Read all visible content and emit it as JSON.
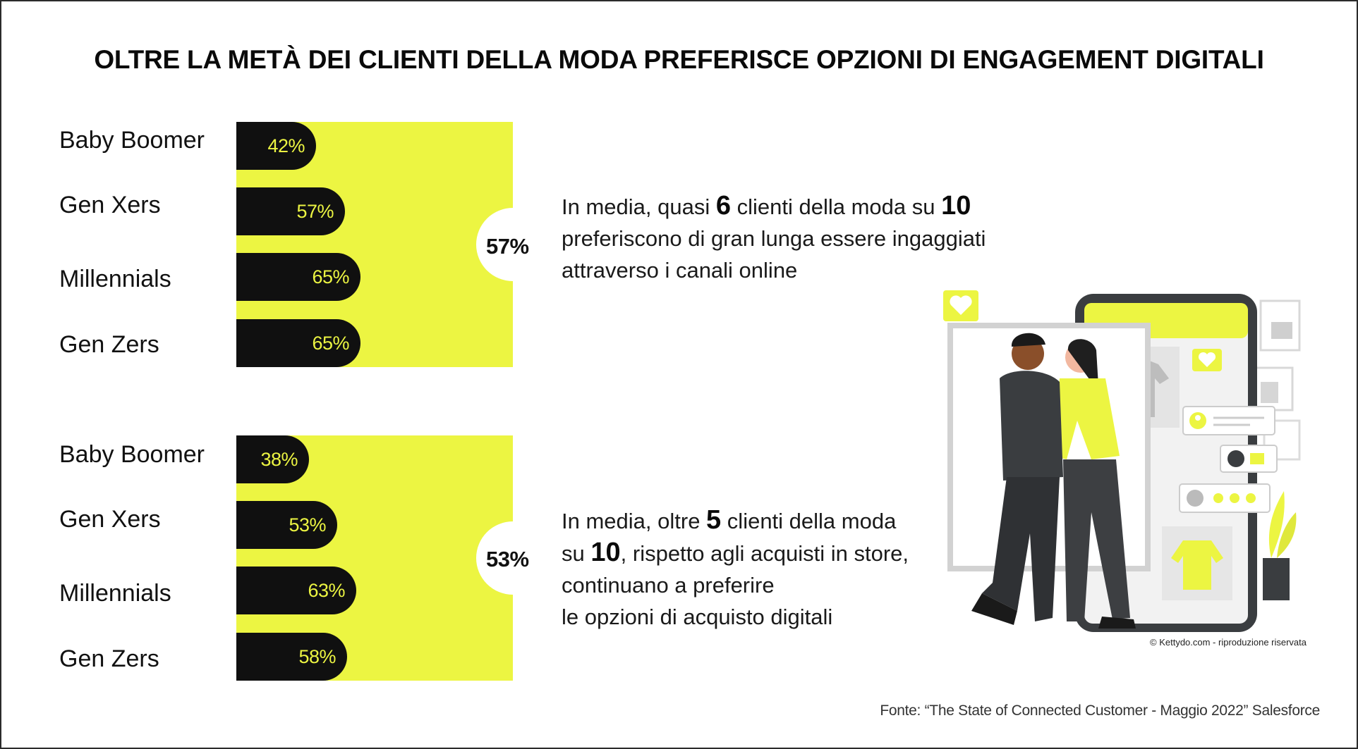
{
  "title": "OLTRE LA METÀ DEI CLIENTI DELLA MODA PREFERISCE OPZIONI DI ENGAGEMENT DIGITALI",
  "colors": {
    "accent": "#ecf542",
    "bar": "#101010",
    "text": "#111111",
    "background": "#ffffff"
  },
  "chart_data": [
    {
      "type": "bar",
      "orientation": "horizontal",
      "categories": [
        "Baby Boomer",
        "Gen Xers",
        "Millennials",
        "Gen Zers"
      ],
      "values": [
        42,
        57,
        65,
        65
      ],
      "value_labels": [
        "42%",
        "57%",
        "65%",
        "65%"
      ],
      "average_label": "57%",
      "unit": "%"
    },
    {
      "type": "bar",
      "orientation": "horizontal",
      "categories": [
        "Baby Boomer",
        "Gen Xers",
        "Millennials",
        "Gen Zers"
      ],
      "values": [
        38,
        53,
        63,
        58
      ],
      "value_labels": [
        "38%",
        "53%",
        "63%",
        "58%"
      ],
      "average_label": "53%",
      "unit": "%"
    }
  ],
  "statements": [
    {
      "lines": [
        [
          "In media, quasi ",
          "6",
          " clienti della moda su ",
          "10",
          ""
        ],
        [
          "preferiscono di gran lunga essere ingaggiati"
        ],
        [
          "attraverso i canali online"
        ]
      ]
    },
    {
      "lines": [
        [
          "In media, oltre ",
          "5",
          " clienti della moda"
        ],
        [
          "su ",
          "10",
          ", rispetto agli acquisti in store,"
        ],
        [
          "continuano a preferire"
        ],
        [
          "le opzioni di acquisto digitali"
        ]
      ]
    }
  ],
  "illustration": {
    "icons": [
      "heart-icon",
      "shirt-icon",
      "user-icon",
      "thumbs-up-icon",
      "sweater-icon",
      "plant-icon"
    ]
  },
  "credit": "© Kettydo.com - riproduzione riservata",
  "source": "Fonte: “The State of Connected Customer - Maggio 2022” Salesforce"
}
